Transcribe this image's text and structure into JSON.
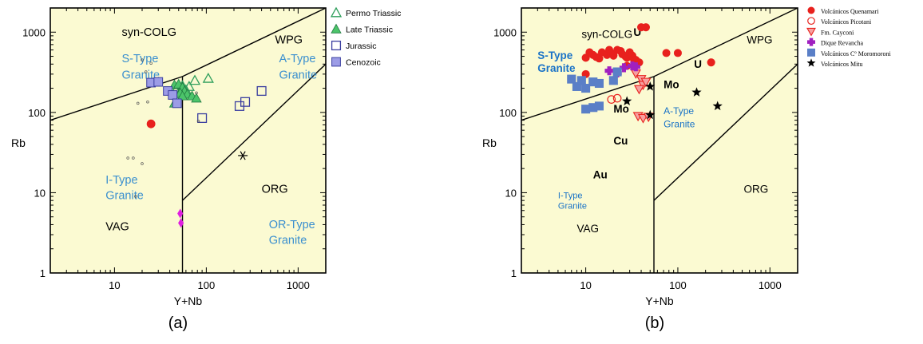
{
  "chart_data": [
    {
      "panel_label": "(a)",
      "type": "scatter",
      "xlabel": "Y+Nb",
      "ylabel": "Rb",
      "xscale": "log",
      "yscale": "log",
      "xlim": [
        2,
        2000
      ],
      "ylim": [
        1,
        2000
      ],
      "xticks": [
        "10",
        "100",
        "1000"
      ],
      "yticks": [
        "1",
        "10",
        "100",
        "1000"
      ],
      "legend_position": "right-outside",
      "field_labels": [
        {
          "text": "syn-COLG",
          "color": "#000000",
          "x": 12,
          "y": 900
        },
        {
          "text": "S-Type",
          "color": "#3a8fcf",
          "x": 12,
          "y": 420
        },
        {
          "text": "Granite",
          "color": "#3a8fcf",
          "x": 12,
          "y": 265
        },
        {
          "text": "WPG",
          "color": "#000000",
          "x": 560,
          "y": 720
        },
        {
          "text": "A-Type",
          "color": "#3a8fcf",
          "x": 620,
          "y": 420
        },
        {
          "text": "Granite",
          "color": "#3a8fcf",
          "x": 620,
          "y": 265
        },
        {
          "text": "I-Type",
          "color": "#3a8fcf",
          "x": 8,
          "y": 13
        },
        {
          "text": "Granite",
          "color": "#3a8fcf",
          "x": 8,
          "y": 8.3
        },
        {
          "text": "VAG",
          "color": "#000000",
          "x": 8,
          "y": 3.4
        },
        {
          "text": "ORG",
          "color": "#000000",
          "x": 400,
          "y": 10
        },
        {
          "text": "OR-Type",
          "color": "#3a8fcf",
          "x": 480,
          "y": 3.6
        },
        {
          "text": "Granite",
          "color": "#3a8fcf",
          "x": 480,
          "y": 2.3
        }
      ],
      "series": [
        {
          "name": "Permo Triassic",
          "marker": "triangle-open",
          "color": "#2e9e5b",
          "points": [
            [
              55,
              215
            ],
            [
              65,
              210
            ],
            [
              75,
              250
            ],
            [
              105,
              265
            ],
            [
              60,
              190
            ],
            [
              48,
              200
            ],
            [
              52,
              170
            ]
          ]
        },
        {
          "name": "Late Triassic",
          "marker": "triangle-filled",
          "color": "#4cc46a",
          "points": [
            [
              45,
              220
            ],
            [
              50,
              225
            ],
            [
              55,
              205
            ],
            [
              58,
              185
            ],
            [
              52,
              175
            ],
            [
              62,
              168
            ],
            [
              70,
              160
            ],
            [
              78,
              150
            ],
            [
              45,
              130
            ],
            [
              55,
              160
            ]
          ]
        },
        {
          "name": "Jurassic",
          "marker": "square-open",
          "color": "#3b3fa0",
          "points": [
            [
              90,
              85
            ],
            [
              230,
              120
            ],
            [
              265,
              135
            ],
            [
              400,
              185
            ]
          ]
        },
        {
          "name": "Cenozoic",
          "marker": "square-filled",
          "color": "#3b3fa0",
          "points": [
            [
              25,
              235
            ],
            [
              30,
              240
            ],
            [
              38,
              185
            ],
            [
              43,
              165
            ],
            [
              48,
              130
            ]
          ]
        },
        {
          "name": "",
          "marker": "circle-filled",
          "color": "#e8211d",
          "points": [
            [
              25,
              72
            ]
          ]
        },
        {
          "name": "",
          "marker": "diamond-filled",
          "color": "#e01ee0",
          "points": [
            [
              52,
              5.5
            ],
            [
              53,
              4.2
            ]
          ]
        },
        {
          "name": "",
          "marker": "asterisk",
          "color": "#000000",
          "points": [
            [
              250,
              29
            ]
          ]
        },
        {
          "name": "",
          "marker": "small-circle",
          "color": "#555555",
          "points": [
            [
              20,
              450
            ],
            [
              25,
              410
            ],
            [
              22,
              320
            ],
            [
              18,
              130
            ],
            [
              23,
              135
            ],
            [
              14,
              27
            ],
            [
              16,
              27
            ],
            [
              20,
              23
            ],
            [
              17,
              9
            ],
            [
              78,
              175
            ],
            [
              82,
              78
            ]
          ]
        }
      ]
    },
    {
      "panel_label": "(b)",
      "type": "scatter",
      "xlabel": "Y+Nb",
      "ylabel": "Rb",
      "xscale": "log",
      "yscale": "log",
      "xlim": [
        2,
        2000
      ],
      "ylim": [
        1,
        2000
      ],
      "xticks": [
        "10",
        "100",
        "1000"
      ],
      "yticks": [
        "1",
        "10",
        "100",
        "1000"
      ],
      "legend_position": "right-outside",
      "field_labels": [
        {
          "text": "syn-COLG",
          "color": "#000000",
          "x": 9,
          "y": 850
        },
        {
          "text": "U",
          "color": "#000000",
          "x": 33,
          "y": 900
        },
        {
          "text": "S-Type",
          "color": "#1a73c7",
          "x": 3,
          "y": 460
        },
        {
          "text": "Granite",
          "color": "#1a73c7",
          "x": 3,
          "y": 320
        },
        {
          "text": "WPG",
          "color": "#000000",
          "x": 560,
          "y": 720
        },
        {
          "text": "U",
          "color": "#000000",
          "x": 150,
          "y": 360
        },
        {
          "text": "Mo",
          "color": "#000000",
          "x": 70,
          "y": 200
        },
        {
          "text": "Mo",
          "color": "#000000",
          "x": 20,
          "y": 100
        },
        {
          "text": "A-Type",
          "color": "#1a73c7",
          "x": 70,
          "y": 95
        },
        {
          "text": "Granite",
          "color": "#1a73c7",
          "x": 70,
          "y": 65
        },
        {
          "text": "Cu",
          "color": "#000000",
          "x": 20,
          "y": 40
        },
        {
          "text": "Au",
          "color": "#000000",
          "x": 12,
          "y": 15
        },
        {
          "text": "I-Type",
          "color": "#1a73c7",
          "x": 5,
          "y": 8.5
        },
        {
          "text": "Granite",
          "color": "#1a73c7",
          "x": 5,
          "y": 6.3
        },
        {
          "text": "VAG",
          "color": "#000000",
          "x": 8,
          "y": 3.2
        },
        {
          "text": "ORG",
          "color": "#000000",
          "x": 520,
          "y": 10
        }
      ],
      "series": [
        {
          "name": "Volcánicos Quenamari",
          "marker": "circle-filled",
          "color": "#e8211d",
          "points": [
            [
              10,
              480
            ],
            [
              11,
              560
            ],
            [
              12,
              520
            ],
            [
              13,
              490
            ],
            [
              14,
              470
            ],
            [
              15,
              560
            ],
            [
              17,
              520
            ],
            [
              18,
              600
            ],
            [
              19,
              540
            ],
            [
              20,
              510
            ],
            [
              22,
              600
            ],
            [
              24,
              580
            ],
            [
              25,
              530
            ],
            [
              27,
              500
            ],
            [
              28,
              480
            ],
            [
              30,
              560
            ],
            [
              32,
              510
            ],
            [
              33,
              470
            ],
            [
              35,
              450
            ],
            [
              38,
              420
            ],
            [
              28,
              380
            ],
            [
              40,
              1150
            ],
            [
              45,
              1150
            ],
            [
              75,
              550
            ],
            [
              100,
              550
            ],
            [
              230,
              420
            ],
            [
              10,
              300
            ]
          ]
        },
        {
          "name": "Volcánicos Picotani",
          "marker": "circle-open",
          "color": "#e8211d",
          "points": [
            [
              19,
              145
            ],
            [
              22,
              150
            ]
          ]
        },
        {
          "name": "Fm. Cayconi",
          "marker": "triangle-down-open",
          "color": "#e8211d",
          "points": [
            [
              35,
              305
            ],
            [
              40,
              260
            ],
            [
              42,
              220
            ],
            [
              45,
              240
            ],
            [
              38,
              195
            ],
            [
              37,
              90
            ],
            [
              42,
              85
            ],
            [
              48,
              88
            ]
          ]
        },
        {
          "name": "Dique Revancha",
          "marker": "plus-filled",
          "color": "#a020c0",
          "points": [
            [
              18,
              330
            ],
            [
              22,
              310
            ],
            [
              26,
              360
            ],
            [
              32,
              380
            ],
            [
              35,
              370
            ]
          ]
        },
        {
          "name": "Volcánicos Cº Moromoroni",
          "marker": "square-filled",
          "color": "#5a7fc7",
          "points": [
            [
              7,
              260
            ],
            [
              8,
              210
            ],
            [
              9,
              250
            ],
            [
              10,
              200
            ],
            [
              12,
              240
            ],
            [
              14,
              230
            ],
            [
              10,
              110
            ],
            [
              12,
              115
            ],
            [
              14,
              120
            ],
            [
              20,
              250
            ],
            [
              22,
              320
            ]
          ]
        },
        {
          "name": "Volcánicos Mitu",
          "marker": "star",
          "color": "#000000",
          "points": [
            [
              28,
              138
            ],
            [
              50,
              210
            ],
            [
              50,
              93
            ],
            [
              160,
              178
            ],
            [
              270,
              120
            ]
          ]
        }
      ]
    }
  ]
}
